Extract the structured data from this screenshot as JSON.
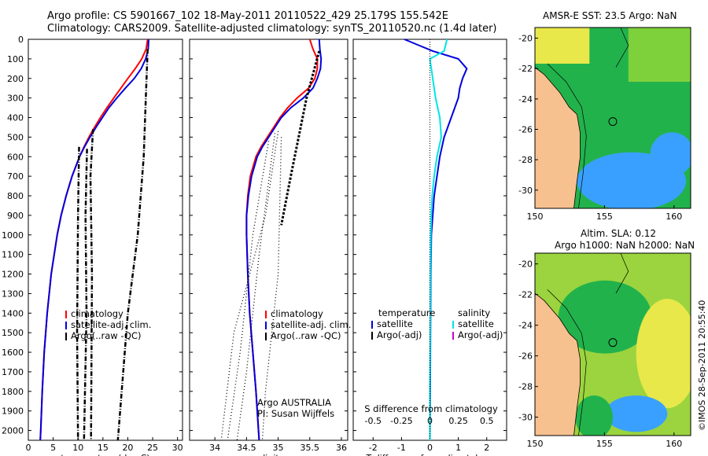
{
  "header": {
    "line1": "Argo profile: CS 5901667_102 18-May-2011 20110522_429 25.179S 155.542E",
    "line2": "Climatology: CARS2009. Satellite-adjusted climatology: synTS_20110520.nc (1.4d later)"
  },
  "colors": {
    "climatology": "#ff0000",
    "satellite": "#0000dd",
    "argo": "#000000",
    "s_satellite": "#00e5e5",
    "argo_adj": "#cc00cc",
    "land": "#f7c08f",
    "map_green": "#22b24c",
    "map_yellow": "#e8e84a",
    "map_blue": "#3aa0ff"
  },
  "depth_axis": {
    "ylim": [
      2050,
      0
    ],
    "ticks": [
      "0",
      "100",
      "200",
      "300",
      "400",
      "500",
      "600",
      "700",
      "800",
      "900",
      "1000",
      "1100",
      "1200",
      "1300",
      "1400",
      "1500",
      "1600",
      "1700",
      "1800",
      "1900",
      "2000"
    ]
  },
  "chart_data": [
    {
      "type": "line",
      "id": "temperature",
      "xlabel": "temperature (deg C)",
      "xlim": [
        0,
        31
      ],
      "xticks": [
        "0",
        "5",
        "10",
        "15",
        "20",
        "25",
        "30"
      ],
      "depths": [
        0,
        50,
        100,
        150,
        200,
        250,
        300,
        350,
        400,
        450,
        500,
        550,
        600,
        700,
        800,
        900,
        1000,
        1200,
        1400,
        1600,
        1800,
        2000,
        2050
      ],
      "series": [
        {
          "name": "climatology",
          "values": [
            24,
            23.7,
            22.8,
            21.5,
            20,
            18.6,
            17.2,
            15.8,
            14.5,
            13.3,
            12.2,
            11.2,
            10.3,
            8.8,
            7.6,
            6.6,
            5.8,
            4.6,
            3.8,
            3.2,
            2.8,
            2.5,
            2.4
          ]
        },
        {
          "name": "satellite-adj. clim.",
          "values": [
            24.2,
            24.1,
            23.6,
            22.7,
            21.3,
            19.5,
            17.8,
            16.2,
            14.9,
            13.6,
            12.4,
            11.3,
            10.3,
            8.8,
            7.6,
            6.6,
            5.8,
            4.6,
            3.8,
            3.2,
            2.8,
            2.5,
            2.4
          ]
        }
      ],
      "legend": [
        "climatology",
        "satellite-adj. clim.",
        "Argo(..raw -QC)"
      ]
    },
    {
      "type": "line",
      "id": "salinity",
      "xlabel": "salinity",
      "xlim": [
        33.6,
        36.1
      ],
      "xticks": [
        "34",
        "34.5",
        "35",
        "35.5",
        "36"
      ],
      "depths": [
        0,
        50,
        100,
        150,
        200,
        250,
        300,
        350,
        400,
        450,
        500,
        550,
        600,
        700,
        800,
        900,
        1000,
        1200,
        1400,
        1600,
        1800,
        2000,
        2050
      ],
      "series": [
        {
          "name": "climatology",
          "values": [
            35.5,
            35.55,
            35.62,
            35.62,
            35.58,
            35.48,
            35.3,
            35.15,
            35.03,
            34.93,
            34.83,
            34.73,
            34.65,
            34.56,
            34.52,
            34.5,
            34.5,
            34.52,
            34.55,
            34.6,
            34.65,
            34.69,
            34.7
          ]
        },
        {
          "name": "satellite-adj. clim.",
          "values": [
            35.65,
            35.66,
            35.68,
            35.67,
            35.62,
            35.55,
            35.4,
            35.2,
            35.05,
            34.95,
            34.85,
            34.75,
            34.67,
            34.58,
            34.53,
            34.5,
            34.5,
            34.52,
            34.55,
            34.6,
            34.65,
            34.69,
            34.7
          ]
        }
      ],
      "legend": [
        "climatology",
        "satellite-adj. clim.",
        "Argo(..raw -QC)"
      ],
      "note1": "Argo AUSTRALIA",
      "note2": "PI: Susan Wijffels"
    },
    {
      "type": "line",
      "id": "difference",
      "xlabel_top": "S difference from climatology",
      "xticks_top": [
        "-0.5",
        "-0.25",
        "0",
        "0.25",
        "0.5"
      ],
      "xlabel": "T difference from climatology",
      "xlim": [
        -2.7,
        2.7
      ],
      "xticks": [
        "-2",
        "-1",
        "0",
        "1",
        "2"
      ],
      "depths": [
        0,
        30,
        60,
        100,
        150,
        200,
        250,
        300,
        400,
        500,
        600,
        700,
        800,
        900,
        1000,
        1200,
        1500,
        1800,
        2050
      ],
      "series": [
        {
          "name": "T satellite",
          "values": [
            -0.9,
            -0.4,
            0.1,
            1.0,
            1.3,
            1.15,
            1.05,
            1.0,
            0.75,
            0.5,
            0.35,
            0.25,
            0.15,
            0.1,
            0.05,
            0.03,
            0.02,
            0.01,
            0.0
          ]
        },
        {
          "name": "S satellite",
          "values": [
            0.6,
            0.55,
            0.5,
            0.0,
            0.05,
            0.1,
            0.15,
            0.2,
            0.35,
            0.4,
            0.25,
            0.15,
            0.08,
            0.05,
            0.03,
            0.02,
            0.01,
            0.0,
            0.0
          ]
        }
      ],
      "legend_t_title": "temperature",
      "legend_s_title": "salinity",
      "legend_t": [
        "satellite",
        "Argo(-adj)"
      ],
      "legend_s": [
        "satellite",
        "Argo(-adj)"
      ]
    }
  ],
  "maps": [
    {
      "title": "AMSR-E SST: 23.5 Argo: NaN",
      "yticks": [
        "-20",
        "-22",
        "-24",
        "-26",
        "-28",
        "-30"
      ],
      "xticks": [
        "150",
        "155",
        "160"
      ]
    },
    {
      "title1": "Altim. SLA: 0.12",
      "title2": "Argo h1000: NaN h2000: NaN",
      "yticks": [
        "-20",
        "-22",
        "-24",
        "-26",
        "-28",
        "-30"
      ],
      "xticks": [
        "150",
        "155",
        "160"
      ]
    }
  ],
  "credit": "©IMOS 28-Sep-2011 20:55:40"
}
